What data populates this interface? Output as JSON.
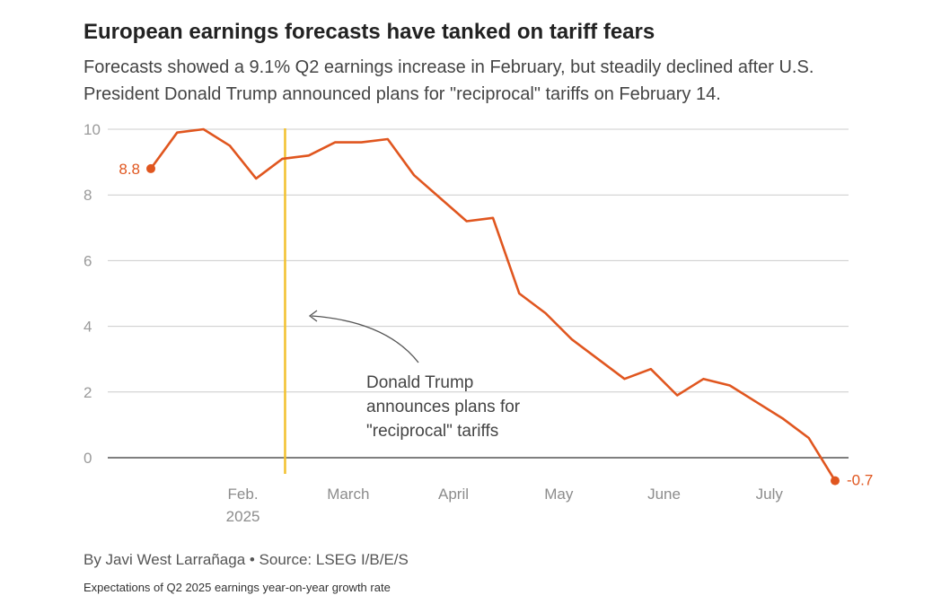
{
  "title": "European earnings forecasts have tanked on tariff fears",
  "subtitle": "Forecasts showed a 9.1% Q2 earnings increase in February, but steadily declined after U.S. President Donald Trump announced plans for \"reciprocal\" tariffs on February 14.",
  "credit": "By Javi West Larrañaga • Source: LSEG I/B/E/S",
  "note": "Expectations of Q2 2025 earnings year-on-year growth rate",
  "colors": {
    "line": "#e0561f",
    "marker": "#f2c12e",
    "grid": "#cccccc",
    "zero": "#333333"
  },
  "chart_data": {
    "type": "line",
    "title": "European earnings forecasts have tanked on tariff fears",
    "ylabel": "Expectations of Q2 2025 earnings year-on-year growth rate",
    "xlabel": "",
    "ylim": [
      -0.7,
      10
    ],
    "yticks": [
      0,
      2,
      4,
      6,
      8,
      10
    ],
    "xlim": [
      0,
      26
    ],
    "x_ticks": [
      {
        "x": 3.5,
        "label": "Feb.",
        "sublabel": "2025"
      },
      {
        "x": 7.5,
        "label": "March",
        "sublabel": ""
      },
      {
        "x": 11.5,
        "label": "April",
        "sublabel": ""
      },
      {
        "x": 15.5,
        "label": "May",
        "sublabel": ""
      },
      {
        "x": 19.5,
        "label": "June",
        "sublabel": ""
      },
      {
        "x": 23.5,
        "label": "July",
        "sublabel": ""
      }
    ],
    "series": [
      {
        "name": "Q2 2025 earnings growth expectation (%)",
        "x": [
          0,
          1,
          2,
          3,
          4,
          5,
          6,
          7,
          8,
          9,
          10,
          11,
          12,
          13,
          14,
          15,
          16,
          17,
          18,
          19,
          20,
          21,
          22,
          23,
          24,
          25,
          26
        ],
        "values": [
          8.8,
          9.9,
          10.0,
          9.5,
          8.5,
          9.1,
          9.2,
          9.6,
          9.6,
          9.7,
          8.6,
          7.9,
          7.2,
          7.3,
          5.0,
          4.4,
          3.6,
          3.0,
          2.4,
          2.7,
          1.9,
          2.4,
          2.2,
          1.7,
          1.2,
          0.6,
          -0.7
        ]
      }
    ],
    "start_label": "8.8",
    "end_label": "-0.7",
    "event_x": 5.1,
    "annotation": {
      "lines": [
        "Donald Trump",
        "announces plans for",
        "\"reciprocal\" tariffs"
      ]
    }
  }
}
